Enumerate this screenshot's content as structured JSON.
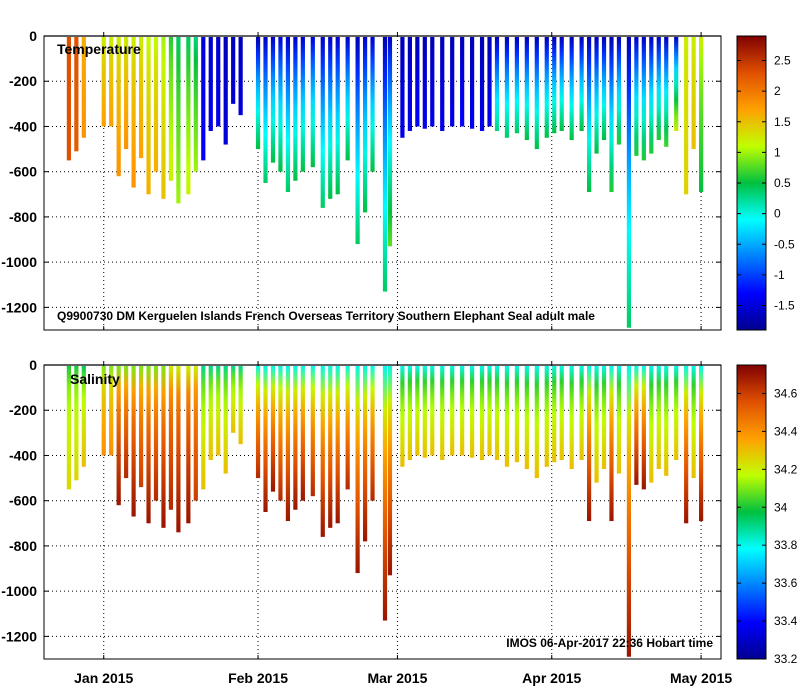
{
  "chart_data": [
    {
      "type": "heatmap",
      "title": "Temperature",
      "variable": "temperature",
      "annotation": "Q9900730 DM Kerguelen Islands French Overseas Territory Southern Elephant Seal adult male",
      "ylim": [
        -1300,
        0
      ],
      "yticks": [
        0,
        -200,
        -400,
        -600,
        -800,
        -1000,
        -1200
      ],
      "ytick_labels": [
        "0",
        "-200",
        "-400",
        "-600",
        "-800",
        "-1000",
        "-1200"
      ],
      "colorbar": {
        "range": [
          -1.9,
          2.9
        ],
        "ticks": [
          2.5,
          2,
          1.5,
          1,
          0.5,
          0,
          -0.5,
          -1,
          -1.5
        ],
        "tick_labels": [
          "2.5",
          "2",
          "1.5",
          "1",
          "0.5",
          "0",
          "-0.5",
          "-1",
          "-1.5"
        ]
      }
    },
    {
      "type": "heatmap",
      "title": "Salinity",
      "variable": "salinity",
      "annotation": "IMOS 06-Apr-2017 22:36 Hobart time",
      "ylim": [
        -1300,
        0
      ],
      "yticks": [
        0,
        -200,
        -400,
        -600,
        -800,
        -1000,
        -1200
      ],
      "ytick_labels": [
        "0",
        "-200",
        "-400",
        "-600",
        "-800",
        "-1000",
        "-1200"
      ],
      "colorbar": {
        "range": [
          33.2,
          34.75
        ],
        "ticks": [
          34.6,
          34.4,
          34.2,
          34,
          33.8,
          33.6,
          33.4,
          33.2
        ],
        "tick_labels": [
          "34.6",
          "34.4",
          "34.2",
          "34",
          "33.8",
          "33.6",
          "33.4",
          "33.2"
        ]
      }
    }
  ],
  "x_axis": {
    "range": [
      "2014-12-20",
      "2015-05-05"
    ],
    "ticks": [
      "2015-01-01",
      "2015-02-01",
      "2015-03-01",
      "2015-04-01",
      "2015-05-01"
    ],
    "tick_labels": [
      "Jan 2015",
      "Feb 2015",
      "Mar 2015",
      "Apr 2015",
      "May 2015"
    ]
  },
  "profiles": [
    {
      "date": "2014-12-25.0",
      "max_depth": 550,
      "t_surface": 2.3,
      "t_deep": 2.3,
      "s_surface": 34.0,
      "s_deep": 34.25
    },
    {
      "date": "2014-12-26.5",
      "max_depth": 510,
      "t_surface": 2.3,
      "t_deep": 2.2,
      "s_surface": 34.0,
      "s_deep": 34.25
    },
    {
      "date": "2014-12-28.0",
      "max_depth": 450,
      "t_surface": 1.6,
      "t_deep": 1.8,
      "s_surface": 33.95,
      "s_deep": 34.3
    },
    {
      "date": "2015-01-01.0",
      "max_depth": 400,
      "t_surface": 1.2,
      "t_deep": 1.7,
      "s_surface": 34.1,
      "s_deep": 34.4
    },
    {
      "date": "2015-01-02.5",
      "max_depth": 400,
      "t_surface": 1.2,
      "t_deep": 1.7,
      "s_surface": 34.1,
      "s_deep": 34.4
    },
    {
      "date": "2015-01-04.0",
      "max_depth": 620,
      "t_surface": 1.2,
      "t_deep": 1.8,
      "s_surface": 34.1,
      "s_deep": 34.7
    },
    {
      "date": "2015-01-05.5",
      "max_depth": 500,
      "t_surface": 1.2,
      "t_deep": 1.8,
      "s_surface": 34.1,
      "s_deep": 34.65
    },
    {
      "date": "2015-01-07.0",
      "max_depth": 670,
      "t_surface": 1.2,
      "t_deep": 1.8,
      "s_surface": 34.1,
      "s_deep": 34.7
    },
    {
      "date": "2015-01-08.5",
      "max_depth": 540,
      "t_surface": 1.2,
      "t_deep": 1.7,
      "s_surface": 34.1,
      "s_deep": 34.6
    },
    {
      "date": "2015-01-10.0",
      "max_depth": 700,
      "t_surface": 1.1,
      "t_deep": 1.6,
      "s_surface": 34.1,
      "s_deep": 34.7
    },
    {
      "date": "2015-01-11.5",
      "max_depth": 600,
      "t_surface": 1.1,
      "t_deep": 1.6,
      "s_surface": 34.1,
      "s_deep": 34.65
    },
    {
      "date": "2015-01-13.0",
      "max_depth": 720,
      "t_surface": 1.0,
      "t_deep": 1.5,
      "s_surface": 34.1,
      "s_deep": 34.7
    },
    {
      "date": "2015-01-14.5",
      "max_depth": 640,
      "t_surface": 0.6,
      "t_deep": 1.2,
      "s_surface": 34.2,
      "s_deep": 34.65
    },
    {
      "date": "2015-01-16.0",
      "max_depth": 740,
      "t_surface": 0.4,
      "t_deep": 1.0,
      "s_surface": 34.2,
      "s_deep": 34.7
    },
    {
      "date": "2015-01-18.0",
      "max_depth": 700,
      "t_surface": 0.4,
      "t_deep": 1.2,
      "s_surface": 34.2,
      "s_deep": 34.7
    },
    {
      "date": "2015-01-19.5",
      "max_depth": 600,
      "t_surface": 0.3,
      "t_deep": 1.0,
      "s_surface": 34.2,
      "s_deep": 34.6
    },
    {
      "date": "2015-01-21.0",
      "max_depth": 550,
      "t_surface": -1.5,
      "t_deep": -1.3,
      "s_surface": 33.9,
      "s_deep": 34.3
    },
    {
      "date": "2015-01-22.5",
      "max_depth": 420,
      "t_surface": -1.6,
      "t_deep": -1.4,
      "s_surface": 33.9,
      "s_deep": 34.3
    },
    {
      "date": "2015-01-24.0",
      "max_depth": 400,
      "t_surface": -1.6,
      "t_deep": -1.4,
      "s_surface": 33.9,
      "s_deep": 34.3
    },
    {
      "date": "2015-01-25.5",
      "max_depth": 480,
      "t_surface": -1.7,
      "t_deep": -1.5,
      "s_surface": 33.9,
      "s_deep": 34.3
    },
    {
      "date": "2015-01-27.0",
      "max_depth": 300,
      "t_surface": -1.7,
      "t_deep": -1.5,
      "s_surface": 33.9,
      "s_deep": 34.3
    },
    {
      "date": "2015-01-28.5",
      "max_depth": 350,
      "t_surface": -1.7,
      "t_deep": -1.5,
      "s_surface": 33.9,
      "s_deep": 34.3
    },
    {
      "date": "2015-02-01.0",
      "max_depth": 500,
      "t_surface": -1.7,
      "t_deep": 0.5,
      "s_surface": 33.8,
      "s_deep": 34.65
    },
    {
      "date": "2015-02-02.5",
      "max_depth": 650,
      "t_surface": -1.6,
      "t_deep": 0.4,
      "s_surface": 33.8,
      "s_deep": 34.7
    },
    {
      "date": "2015-02-04.0",
      "max_depth": 560,
      "t_surface": -1.6,
      "t_deep": 0.5,
      "s_surface": 33.8,
      "s_deep": 34.7
    },
    {
      "date": "2015-02-05.5",
      "max_depth": 600,
      "t_surface": -1.5,
      "t_deep": 0.5,
      "s_surface": 33.8,
      "s_deep": 34.65
    },
    {
      "date": "2015-02-07.0",
      "max_depth": 690,
      "t_surface": -1.6,
      "t_deep": 0.4,
      "s_surface": 33.8,
      "s_deep": 34.7
    },
    {
      "date": "2015-02-08.5",
      "max_depth": 640,
      "t_surface": -1.6,
      "t_deep": 0.5,
      "s_surface": 33.8,
      "s_deep": 34.7
    },
    {
      "date": "2015-02-10.0",
      "max_depth": 600,
      "t_surface": -1.6,
      "t_deep": 0.5,
      "s_surface": 33.8,
      "s_deep": 34.7
    },
    {
      "date": "2015-02-12.0",
      "max_depth": 580,
      "t_surface": -1.5,
      "t_deep": 0.5,
      "s_surface": 33.8,
      "s_deep": 34.65
    },
    {
      "date": "2015-02-14.0",
      "max_depth": 760,
      "t_surface": -1.6,
      "t_deep": 0.4,
      "s_surface": 33.8,
      "s_deep": 34.7
    },
    {
      "date": "2015-02-15.5",
      "max_depth": 720,
      "t_surface": -1.6,
      "t_deep": 0.5,
      "s_surface": 33.8,
      "s_deep": 34.7
    },
    {
      "date": "2015-02-17.0",
      "max_depth": 700,
      "t_surface": -1.6,
      "t_deep": 0.5,
      "s_surface": 33.8,
      "s_deep": 34.7
    },
    {
      "date": "2015-02-19.0",
      "max_depth": 550,
      "t_surface": -1.6,
      "t_deep": 0.5,
      "s_surface": 33.8,
      "s_deep": 34.65
    },
    {
      "date": "2015-02-21.0",
      "max_depth": 920,
      "t_surface": -1.7,
      "t_deep": 0.4,
      "s_surface": 33.8,
      "s_deep": 34.7
    },
    {
      "date": "2015-02-22.5",
      "max_depth": 780,
      "t_surface": -1.6,
      "t_deep": 0.5,
      "s_surface": 33.8,
      "s_deep": 34.7
    },
    {
      "date": "2015-02-24.0",
      "max_depth": 600,
      "t_surface": -1.6,
      "t_deep": 0.5,
      "s_surface": 33.8,
      "s_deep": 34.65
    },
    {
      "date": "2015-02-26.5",
      "max_depth": 1130,
      "t_surface": -1.7,
      "t_deep": 0.4,
      "s_surface": 33.8,
      "s_deep": 34.7
    },
    {
      "date": "2015-02-27.5",
      "max_depth": 930,
      "t_surface": -1.6,
      "t_deep": 0.8,
      "s_surface": 33.8,
      "s_deep": 34.7
    },
    {
      "date": "2015-03-02.0",
      "max_depth": 450,
      "t_surface": -1.7,
      "t_deep": -1.4,
      "s_surface": 33.8,
      "s_deep": 34.3
    },
    {
      "date": "2015-03-03.5",
      "max_depth": 420,
      "t_surface": -1.7,
      "t_deep": -1.4,
      "s_surface": 33.8,
      "s_deep": 34.3
    },
    {
      "date": "2015-03-05.0",
      "max_depth": 400,
      "t_surface": -1.7,
      "t_deep": -1.3,
      "s_surface": 33.8,
      "s_deep": 34.3
    },
    {
      "date": "2015-03-06.5",
      "max_depth": 410,
      "t_surface": -1.7,
      "t_deep": -1.4,
      "s_surface": 33.8,
      "s_deep": 34.3
    },
    {
      "date": "2015-03-08.0",
      "max_depth": 400,
      "t_surface": -1.7,
      "t_deep": -1.4,
      "s_surface": 33.8,
      "s_deep": 34.3
    },
    {
      "date": "2015-03-10.0",
      "max_depth": 420,
      "t_surface": -1.7,
      "t_deep": -1.4,
      "s_surface": 33.8,
      "s_deep": 34.3
    },
    {
      "date": "2015-03-12.0",
      "max_depth": 400,
      "t_surface": -1.7,
      "t_deep": -1.4,
      "s_surface": 33.8,
      "s_deep": 34.3
    },
    {
      "date": "2015-03-14.0",
      "max_depth": 400,
      "t_surface": -1.7,
      "t_deep": -1.3,
      "s_surface": 33.8,
      "s_deep": 34.3
    },
    {
      "date": "2015-03-16.0",
      "max_depth": 410,
      "t_surface": -1.7,
      "t_deep": -1.4,
      "s_surface": 33.8,
      "s_deep": 34.3
    },
    {
      "date": "2015-03-18.0",
      "max_depth": 420,
      "t_surface": -1.7,
      "t_deep": -1.4,
      "s_surface": 33.8,
      "s_deep": 34.3
    },
    {
      "date": "2015-03-19.5",
      "max_depth": 400,
      "t_surface": -1.7,
      "t_deep": -1.4,
      "s_surface": 33.8,
      "s_deep": 34.3
    },
    {
      "date": "2015-03-21.0",
      "max_depth": 420,
      "t_surface": -1.7,
      "t_deep": 0.3,
      "s_surface": 33.8,
      "s_deep": 34.3
    },
    {
      "date": "2015-03-23.0",
      "max_depth": 450,
      "t_surface": -1.7,
      "t_deep": 0.4,
      "s_surface": 33.8,
      "s_deep": 34.3
    },
    {
      "date": "2015-03-25.0",
      "max_depth": 430,
      "t_surface": -1.7,
      "t_deep": 0.4,
      "s_surface": 33.8,
      "s_deep": 34.3
    },
    {
      "date": "2015-03-27.0",
      "max_depth": 460,
      "t_surface": -1.7,
      "t_deep": 0.5,
      "s_surface": 33.8,
      "s_deep": 34.3
    },
    {
      "date": "2015-03-29.0",
      "max_depth": 500,
      "t_surface": -1.7,
      "t_deep": 0.5,
      "s_surface": 33.8,
      "s_deep": 34.3
    },
    {
      "date": "2015-03-31.0",
      "max_depth": 450,
      "t_surface": -1.7,
      "t_deep": 0.5,
      "s_surface": 33.8,
      "s_deep": 34.3
    },
    {
      "date": "2015-04-01.5",
      "max_depth": 430,
      "t_surface": -1.7,
      "t_deep": 0.5,
      "s_surface": 33.8,
      "s_deep": 34.3
    },
    {
      "date": "2015-04-03.0",
      "max_depth": 420,
      "t_surface": -1.7,
      "t_deep": 0.5,
      "s_surface": 33.8,
      "s_deep": 34.3
    },
    {
      "date": "2015-04-05.0",
      "max_depth": 460,
      "t_surface": -1.7,
      "t_deep": 0.5,
      "s_surface": 33.8,
      "s_deep": 34.3
    },
    {
      "date": "2015-04-07.0",
      "max_depth": 420,
      "t_surface": -1.7,
      "t_deep": 0.5,
      "s_surface": 33.8,
      "s_deep": 34.3
    },
    {
      "date": "2015-04-08.5",
      "max_depth": 690,
      "t_surface": -1.7,
      "t_deep": 0.5,
      "s_surface": 33.8,
      "s_deep": 34.7
    },
    {
      "date": "2015-04-10.0",
      "max_depth": 520,
      "t_surface": -1.7,
      "t_deep": 0.5,
      "s_surface": 33.8,
      "s_deep": 34.3
    },
    {
      "date": "2015-04-11.5",
      "max_depth": 460,
      "t_surface": -1.7,
      "t_deep": 0.5,
      "s_surface": 33.8,
      "s_deep": 34.3
    },
    {
      "date": "2015-04-13.0",
      "max_depth": 690,
      "t_surface": -1.7,
      "t_deep": 0.6,
      "s_surface": 33.8,
      "s_deep": 34.7
    },
    {
      "date": "2015-04-14.5",
      "max_depth": 480,
      "t_surface": -1.7,
      "t_deep": 0.6,
      "s_surface": 33.8,
      "s_deep": 34.3
    },
    {
      "date": "2015-04-16.5",
      "max_depth": 1290,
      "t_surface": -1.7,
      "t_deep": 0.4,
      "s_surface": 33.8,
      "s_deep": 34.7
    },
    {
      "date": "2015-04-18.0",
      "max_depth": 530,
      "t_surface": -1.6,
      "t_deep": 0.6,
      "s_surface": 33.8,
      "s_deep": 34.7
    },
    {
      "date": "2015-04-19.5",
      "max_depth": 550,
      "t_surface": -1.6,
      "t_deep": 0.6,
      "s_surface": 33.8,
      "s_deep": 34.7
    },
    {
      "date": "2015-04-21.0",
      "max_depth": 520,
      "t_surface": -1.6,
      "t_deep": 0.6,
      "s_surface": 33.8,
      "s_deep": 34.3
    },
    {
      "date": "2015-04-22.5",
      "max_depth": 460,
      "t_surface": -1.6,
      "t_deep": 0.6,
      "s_surface": 33.8,
      "s_deep": 34.3
    },
    {
      "date": "2015-04-24.0",
      "max_depth": 490,
      "t_surface": -1.6,
      "t_deep": 0.7,
      "s_surface": 33.8,
      "s_deep": 34.3
    },
    {
      "date": "2015-04-26.0",
      "max_depth": 420,
      "t_surface": -1.6,
      "t_deep": 1.2,
      "s_surface": 33.8,
      "s_deep": 34.3
    },
    {
      "date": "2015-04-28.0",
      "max_depth": 700,
      "t_surface": 1.2,
      "t_deep": 1.4,
      "s_surface": 33.8,
      "s_deep": 34.7
    },
    {
      "date": "2015-04-29.5",
      "max_depth": 500,
      "t_surface": 1.2,
      "t_deep": 1.5,
      "s_surface": 33.8,
      "s_deep": 34.3
    },
    {
      "date": "2015-05-01.0",
      "max_depth": 690,
      "t_surface": 1.2,
      "t_deep": 0.5,
      "s_surface": 33.8,
      "s_deep": 34.7
    }
  ]
}
